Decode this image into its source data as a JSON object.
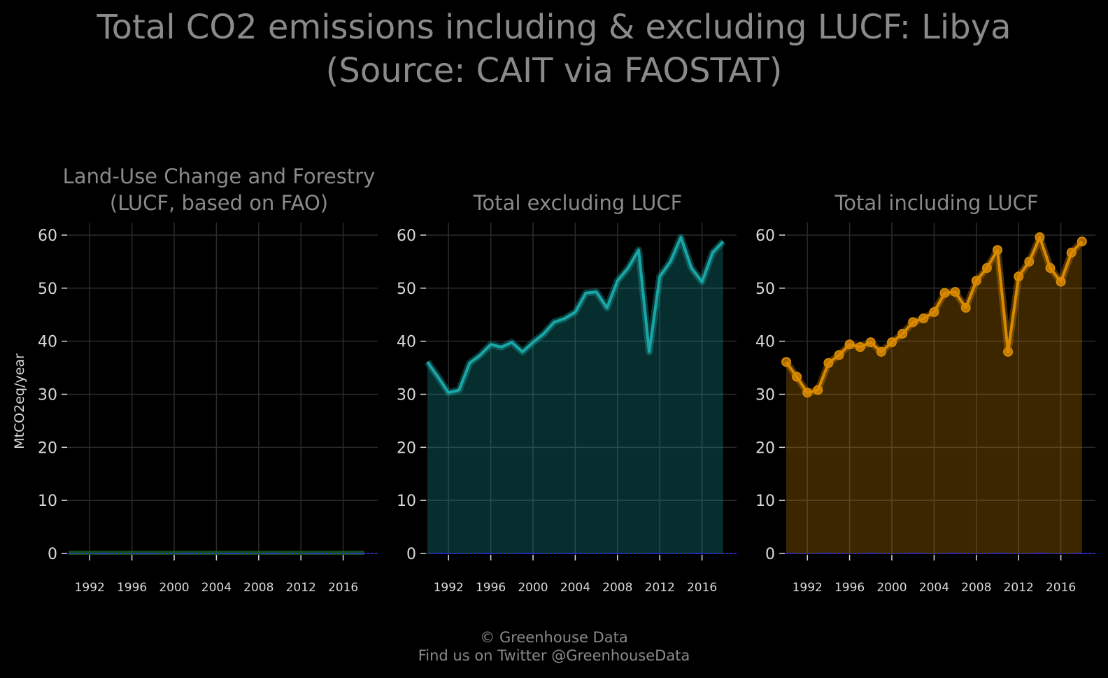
{
  "title": {
    "line1": "Total CO2 emissions including & excluding LUCF: Libya",
    "line2": "(Source: CAIT via FAOSTAT)"
  },
  "footer": {
    "copyright": "© Greenhouse Data",
    "twitter": "Find us on Twitter @GreenhouseData"
  },
  "colors": {
    "background": "#000000",
    "grid": "#2b2b2b",
    "zero_line": "#2a2aff",
    "lucf": "#1f6b2a",
    "excluding": "#1aa6a6",
    "including": "#d98a00"
  },
  "chart_data": [
    {
      "type": "area",
      "title": [
        "Land-Use Change and Forestry",
        "(LUCF, based on FAO)"
      ],
      "ylabel": "MtCO2eq/year",
      "xlim": [
        1990,
        2018
      ],
      "ylim": [
        0,
        60
      ],
      "yticks": [
        0,
        10,
        20,
        30,
        40,
        50,
        60
      ],
      "xticks": [
        1992,
        1996,
        2000,
        2004,
        2008,
        2012,
        2016
      ],
      "grid": true,
      "markers": false,
      "x": [
        1990,
        1991,
        1992,
        1993,
        1994,
        1995,
        1996,
        1997,
        1998,
        1999,
        2000,
        2001,
        2002,
        2003,
        2004,
        2005,
        2006,
        2007,
        2008,
        2009,
        2010,
        2011,
        2012,
        2013,
        2014,
        2015,
        2016,
        2017,
        2018
      ],
      "values": [
        0,
        0,
        0,
        0,
        0,
        0,
        0,
        0,
        0,
        0,
        0,
        0,
        0,
        0,
        0,
        0,
        0,
        0,
        0,
        0,
        0,
        0,
        0,
        0,
        0,
        0,
        0,
        0,
        0
      ]
    },
    {
      "type": "area",
      "title": [
        "Total excluding LUCF"
      ],
      "ylabel": "",
      "xlim": [
        1990,
        2018
      ],
      "ylim": [
        0,
        60
      ],
      "yticks": [
        0,
        10,
        20,
        30,
        40,
        50,
        60
      ],
      "xticks": [
        1992,
        1996,
        2000,
        2004,
        2008,
        2012,
        2016
      ],
      "grid": true,
      "markers": false,
      "x": [
        1990,
        1991,
        1992,
        1993,
        1994,
        1995,
        1996,
        1997,
        1998,
        1999,
        2000,
        2001,
        2002,
        2003,
        2004,
        2005,
        2006,
        2007,
        2008,
        2009,
        2010,
        2011,
        2012,
        2013,
        2014,
        2015,
        2016,
        2017,
        2018
      ],
      "values": [
        36.1,
        33.3,
        30.3,
        30.8,
        35.9,
        37.4,
        39.4,
        38.9,
        39.8,
        38.0,
        39.8,
        41.4,
        43.6,
        44.3,
        45.5,
        49.1,
        49.3,
        46.3,
        51.4,
        53.8,
        57.2,
        38.0,
        52.2,
        55.0,
        59.6,
        53.8,
        51.2,
        56.7,
        58.8
      ]
    },
    {
      "type": "area",
      "title": [
        "Total including LUCF"
      ],
      "ylabel": "",
      "xlim": [
        1990,
        2018
      ],
      "ylim": [
        0,
        60
      ],
      "yticks": [
        0,
        10,
        20,
        30,
        40,
        50,
        60
      ],
      "xticks": [
        1992,
        1996,
        2000,
        2004,
        2008,
        2012,
        2016
      ],
      "grid": true,
      "markers": true,
      "x": [
        1990,
        1991,
        1992,
        1993,
        1994,
        1995,
        1996,
        1997,
        1998,
        1999,
        2000,
        2001,
        2002,
        2003,
        2004,
        2005,
        2006,
        2007,
        2008,
        2009,
        2010,
        2011,
        2012,
        2013,
        2014,
        2015,
        2016,
        2017,
        2018
      ],
      "values": [
        36.1,
        33.3,
        30.3,
        30.8,
        35.9,
        37.4,
        39.4,
        38.9,
        39.8,
        38.0,
        39.8,
        41.4,
        43.6,
        44.3,
        45.5,
        49.1,
        49.3,
        46.3,
        51.4,
        53.8,
        57.2,
        38.0,
        52.2,
        55.0,
        59.6,
        53.8,
        51.2,
        56.7,
        58.8
      ]
    }
  ]
}
